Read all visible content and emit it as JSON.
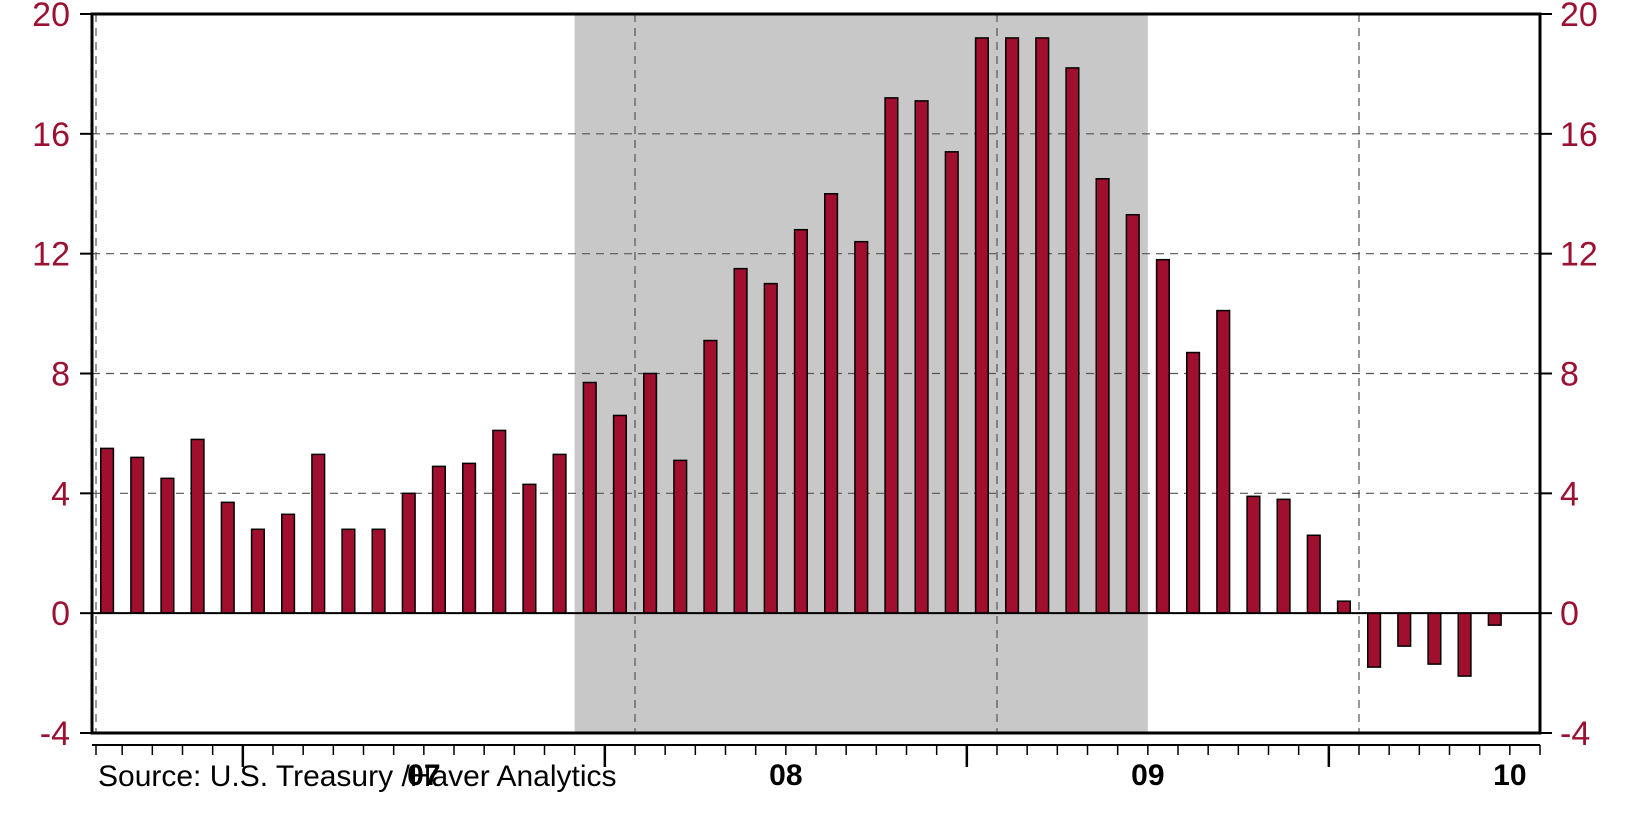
{
  "chart_data": {
    "type": "bar",
    "source_note": "Source:  U.S. Treasury /Haver Analytics",
    "ylim": [
      -4,
      20
    ],
    "yticks": [
      20,
      16,
      12,
      8,
      4,
      0,
      -4
    ],
    "grid": true,
    "years": [
      "07",
      "08",
      "09",
      "10"
    ],
    "recession": {
      "start": "2007-12",
      "end": "2009-06"
    },
    "bar_color": "#a0102e",
    "shade_color": "#c8c8c8",
    "tick_color": "#9b1132",
    "values": [
      5.5,
      5.2,
      4.5,
      5.8,
      3.7,
      2.8,
      3.3,
      5.3,
      2.8,
      2.8,
      4.0,
      4.9,
      5.0,
      6.1,
      4.3,
      5.3,
      7.7,
      6.6,
      8.0,
      5.1,
      9.1,
      11.5,
      11.0,
      12.8,
      14.0,
      12.4,
      17.2,
      17.1,
      15.4,
      19.2,
      19.2,
      19.2,
      18.2,
      14.5,
      13.3,
      11.8,
      8.7,
      10.1,
      3.9,
      3.8,
      2.6,
      0.4,
      -1.8,
      -1.1,
      -1.7,
      -2.1,
      -0.4
    ]
  }
}
